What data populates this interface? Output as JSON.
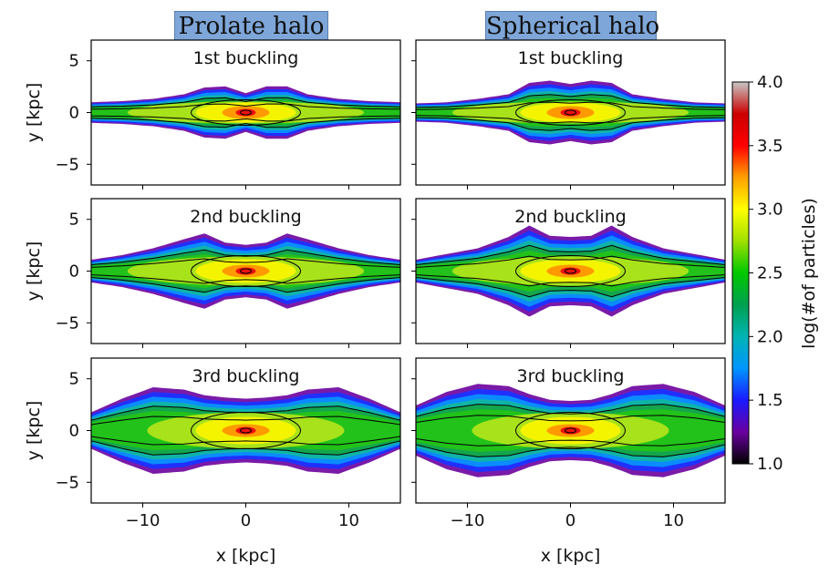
{
  "column_titles": [
    "Prolate halo",
    "Spherical halo"
  ],
  "chart_data": {
    "type": "heatmap",
    "panels": [
      {
        "row": 0,
        "col": 0,
        "label": "1st buckling",
        "halo": "Prolate halo",
        "thickness_profile_kpc": [
          [
            -15,
            0.9
          ],
          [
            -12,
            1.0
          ],
          [
            -9,
            1.2
          ],
          [
            -6,
            1.6
          ],
          [
            -4,
            2.2
          ],
          [
            -2,
            2.3
          ],
          [
            0,
            1.7
          ],
          [
            2,
            2.3
          ],
          [
            4,
            2.3
          ],
          [
            6,
            1.6
          ],
          [
            9,
            1.2
          ],
          [
            12,
            1.0
          ],
          [
            15,
            0.9
          ]
        ]
      },
      {
        "row": 0,
        "col": 1,
        "label": "1st buckling",
        "halo": "Spherical halo",
        "thickness_profile_kpc": [
          [
            -15,
            0.8
          ],
          [
            -12,
            0.9
          ],
          [
            -9,
            1.2
          ],
          [
            -6,
            1.6
          ],
          [
            -4,
            2.6
          ],
          [
            -2,
            2.8
          ],
          [
            0,
            2.5
          ],
          [
            2,
            2.8
          ],
          [
            4,
            2.6
          ],
          [
            6,
            1.6
          ],
          [
            9,
            1.2
          ],
          [
            12,
            0.9
          ],
          [
            15,
            0.8
          ]
        ]
      },
      {
        "row": 1,
        "col": 0,
        "label": "2nd buckling",
        "halo": "Prolate halo",
        "thickness_profile_kpc": [
          [
            -15,
            1.0
          ],
          [
            -12,
            1.4
          ],
          [
            -9,
            2.0
          ],
          [
            -6,
            2.8
          ],
          [
            -4,
            3.3
          ],
          [
            -2,
            2.5
          ],
          [
            0,
            2.3
          ],
          [
            2,
            2.5
          ],
          [
            4,
            3.3
          ],
          [
            6,
            2.8
          ],
          [
            9,
            2.0
          ],
          [
            12,
            1.4
          ],
          [
            15,
            1.0
          ]
        ]
      },
      {
        "row": 1,
        "col": 1,
        "label": "2nd buckling",
        "halo": "Spherical halo",
        "thickness_profile_kpc": [
          [
            -15,
            1.0
          ],
          [
            -12,
            1.5
          ],
          [
            -9,
            2.0
          ],
          [
            -6,
            3.0
          ],
          [
            -4,
            4.0
          ],
          [
            -2,
            3.1
          ],
          [
            0,
            3.0
          ],
          [
            2,
            3.1
          ],
          [
            4,
            4.0
          ],
          [
            6,
            3.0
          ],
          [
            9,
            2.0
          ],
          [
            12,
            1.5
          ],
          [
            15,
            1.0
          ]
        ]
      },
      {
        "row": 2,
        "col": 0,
        "label": "3rd buckling",
        "halo": "Prolate halo",
        "thickness_profile_kpc": [
          [
            -15,
            1.6
          ],
          [
            -12,
            2.8
          ],
          [
            -9,
            3.8
          ],
          [
            -6,
            3.6
          ],
          [
            -4,
            3.1
          ],
          [
            -2,
            2.9
          ],
          [
            0,
            2.8
          ],
          [
            2,
            2.9
          ],
          [
            4,
            3.1
          ],
          [
            6,
            3.6
          ],
          [
            9,
            3.8
          ],
          [
            12,
            2.8
          ],
          [
            15,
            1.6
          ]
        ]
      },
      {
        "row": 2,
        "col": 1,
        "label": "3rd buckling",
        "halo": "Spherical halo",
        "thickness_profile_kpc": [
          [
            -15,
            2.2
          ],
          [
            -12,
            3.4
          ],
          [
            -9,
            4.1
          ],
          [
            -6,
            3.9
          ],
          [
            -4,
            3.2
          ],
          [
            -2,
            2.7
          ],
          [
            0,
            2.6
          ],
          [
            2,
            2.7
          ],
          [
            4,
            3.2
          ],
          [
            6,
            3.9
          ],
          [
            9,
            4.1
          ],
          [
            12,
            3.4
          ],
          [
            15,
            2.2
          ]
        ]
      }
    ],
    "xlabel": "x [kpc]",
    "ylabel": "y [kpc]",
    "xlim": [
      -15,
      15
    ],
    "ylim": [
      -7,
      7
    ],
    "xticks": [
      -10,
      0,
      10
    ],
    "xtick_labels": [
      "−10",
      "0",
      "10"
    ],
    "yticks": [
      5,
      0,
      -5
    ],
    "ytick_labels": [
      "5",
      "0",
      "−5"
    ],
    "colorbar": {
      "label": "log(#of particles)",
      "range": [
        1.0,
        4.0
      ],
      "ticks": [
        4.0,
        3.5,
        3.0,
        2.5,
        2.0,
        1.5,
        1.0
      ],
      "tick_labels": [
        "4.0",
        "3.5",
        "3.0",
        "2.5",
        "2.0",
        "1.5",
        "1.0"
      ],
      "colormap_stops": [
        "#000000",
        "#6a00a0",
        "#1a1aff",
        "#0096ff",
        "#00b4b4",
        "#00a050",
        "#00c800",
        "#a0e000",
        "#ffff00",
        "#ffa000",
        "#ff0000",
        "#cc0000",
        "#c8c8c8"
      ]
    },
    "grid": false
  }
}
